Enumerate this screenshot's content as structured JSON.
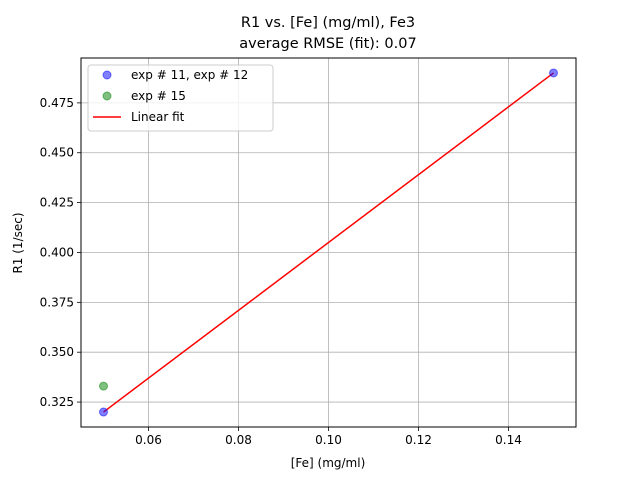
{
  "chart_data": {
    "type": "scatter",
    "title": "R1 vs. [Fe] (mg/ml), Fe3",
    "subtitle": "average RMSE (fit): 0.07",
    "xlabel": "[Fe] (mg/ml)",
    "ylabel": "R1 (1/sec)",
    "xlim": [
      0.045,
      0.155
    ],
    "ylim": [
      0.3125,
      0.4975
    ],
    "xticks": [
      0.06,
      0.08,
      0.1,
      0.12,
      0.14
    ],
    "xtick_labels": [
      "0.06",
      "0.08",
      "0.10",
      "0.12",
      "0.14"
    ],
    "yticks": [
      0.325,
      0.35,
      0.375,
      0.4,
      0.425,
      0.45,
      0.475
    ],
    "ytick_labels": [
      "0.325",
      "0.350",
      "0.375",
      "0.400",
      "0.425",
      "0.450",
      "0.475"
    ],
    "grid": true,
    "legend_position": "top-left",
    "series": [
      {
        "name": "exp # 11, exp # 12",
        "kind": "scatter",
        "color": "#0000ff",
        "x": [
          0.05,
          0.15
        ],
        "y": [
          0.32,
          0.49
        ]
      },
      {
        "name": "exp # 15",
        "kind": "scatter",
        "color": "#008000",
        "x": [
          0.05
        ],
        "y": [
          0.333
        ]
      },
      {
        "name": "Linear fit",
        "kind": "line",
        "color": "#ff0000",
        "x": [
          0.05,
          0.15
        ],
        "y": [
          0.32,
          0.49
        ]
      }
    ]
  }
}
